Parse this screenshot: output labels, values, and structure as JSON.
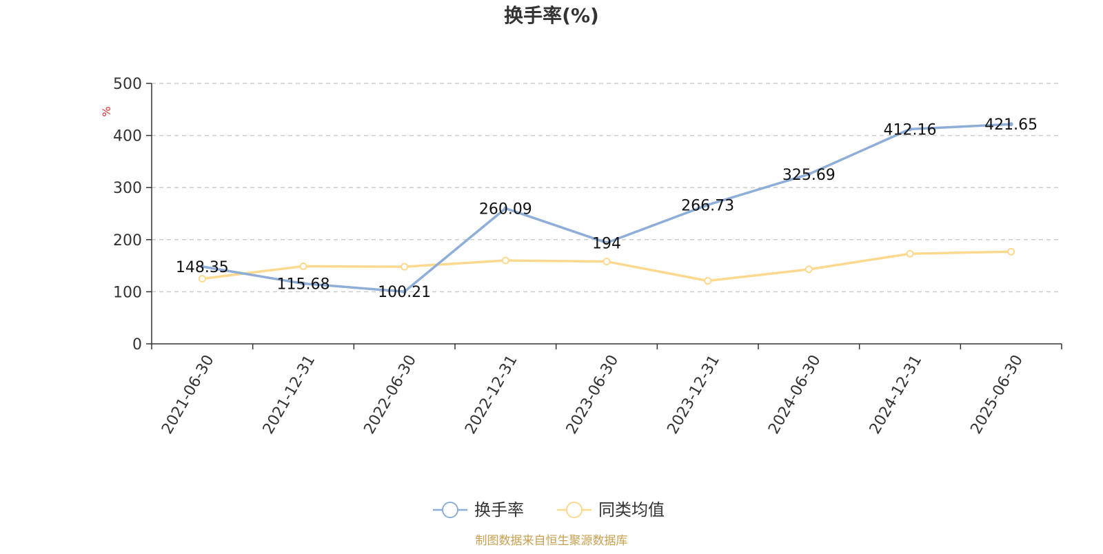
{
  "chart_data": {
    "type": "line",
    "title": "换手率(%)",
    "ylabel": "%",
    "ylim": [
      0,
      500
    ],
    "y_ticks": [
      0,
      100,
      200,
      300,
      400,
      500
    ],
    "grid": true,
    "legend_position": "bottom-center",
    "categories": [
      "2021-06-30",
      "2021-12-31",
      "2022-06-30",
      "2022-12-31",
      "2023-06-30",
      "2023-12-31",
      "2024-06-30",
      "2024-12-31",
      "2025-06-30"
    ],
    "series": [
      {
        "name": "换手率",
        "color": "#8eaed8",
        "values": [
          148.35,
          115.68,
          100.21,
          260.09,
          194,
          266.73,
          325.69,
          412.16,
          421.65
        ],
        "labels": [
          "148.35",
          "115.68",
          "100.21",
          "260.09",
          "194",
          "266.73",
          "325.69",
          "412.16",
          "421.65"
        ]
      },
      {
        "name": "同类均值",
        "color": "#fcd98f",
        "values": [
          125,
          149,
          148,
          160,
          158,
          121,
          143,
          173,
          177
        ]
      }
    ]
  },
  "footer": {
    "source": "制图数据来自恒生聚源数据库"
  }
}
